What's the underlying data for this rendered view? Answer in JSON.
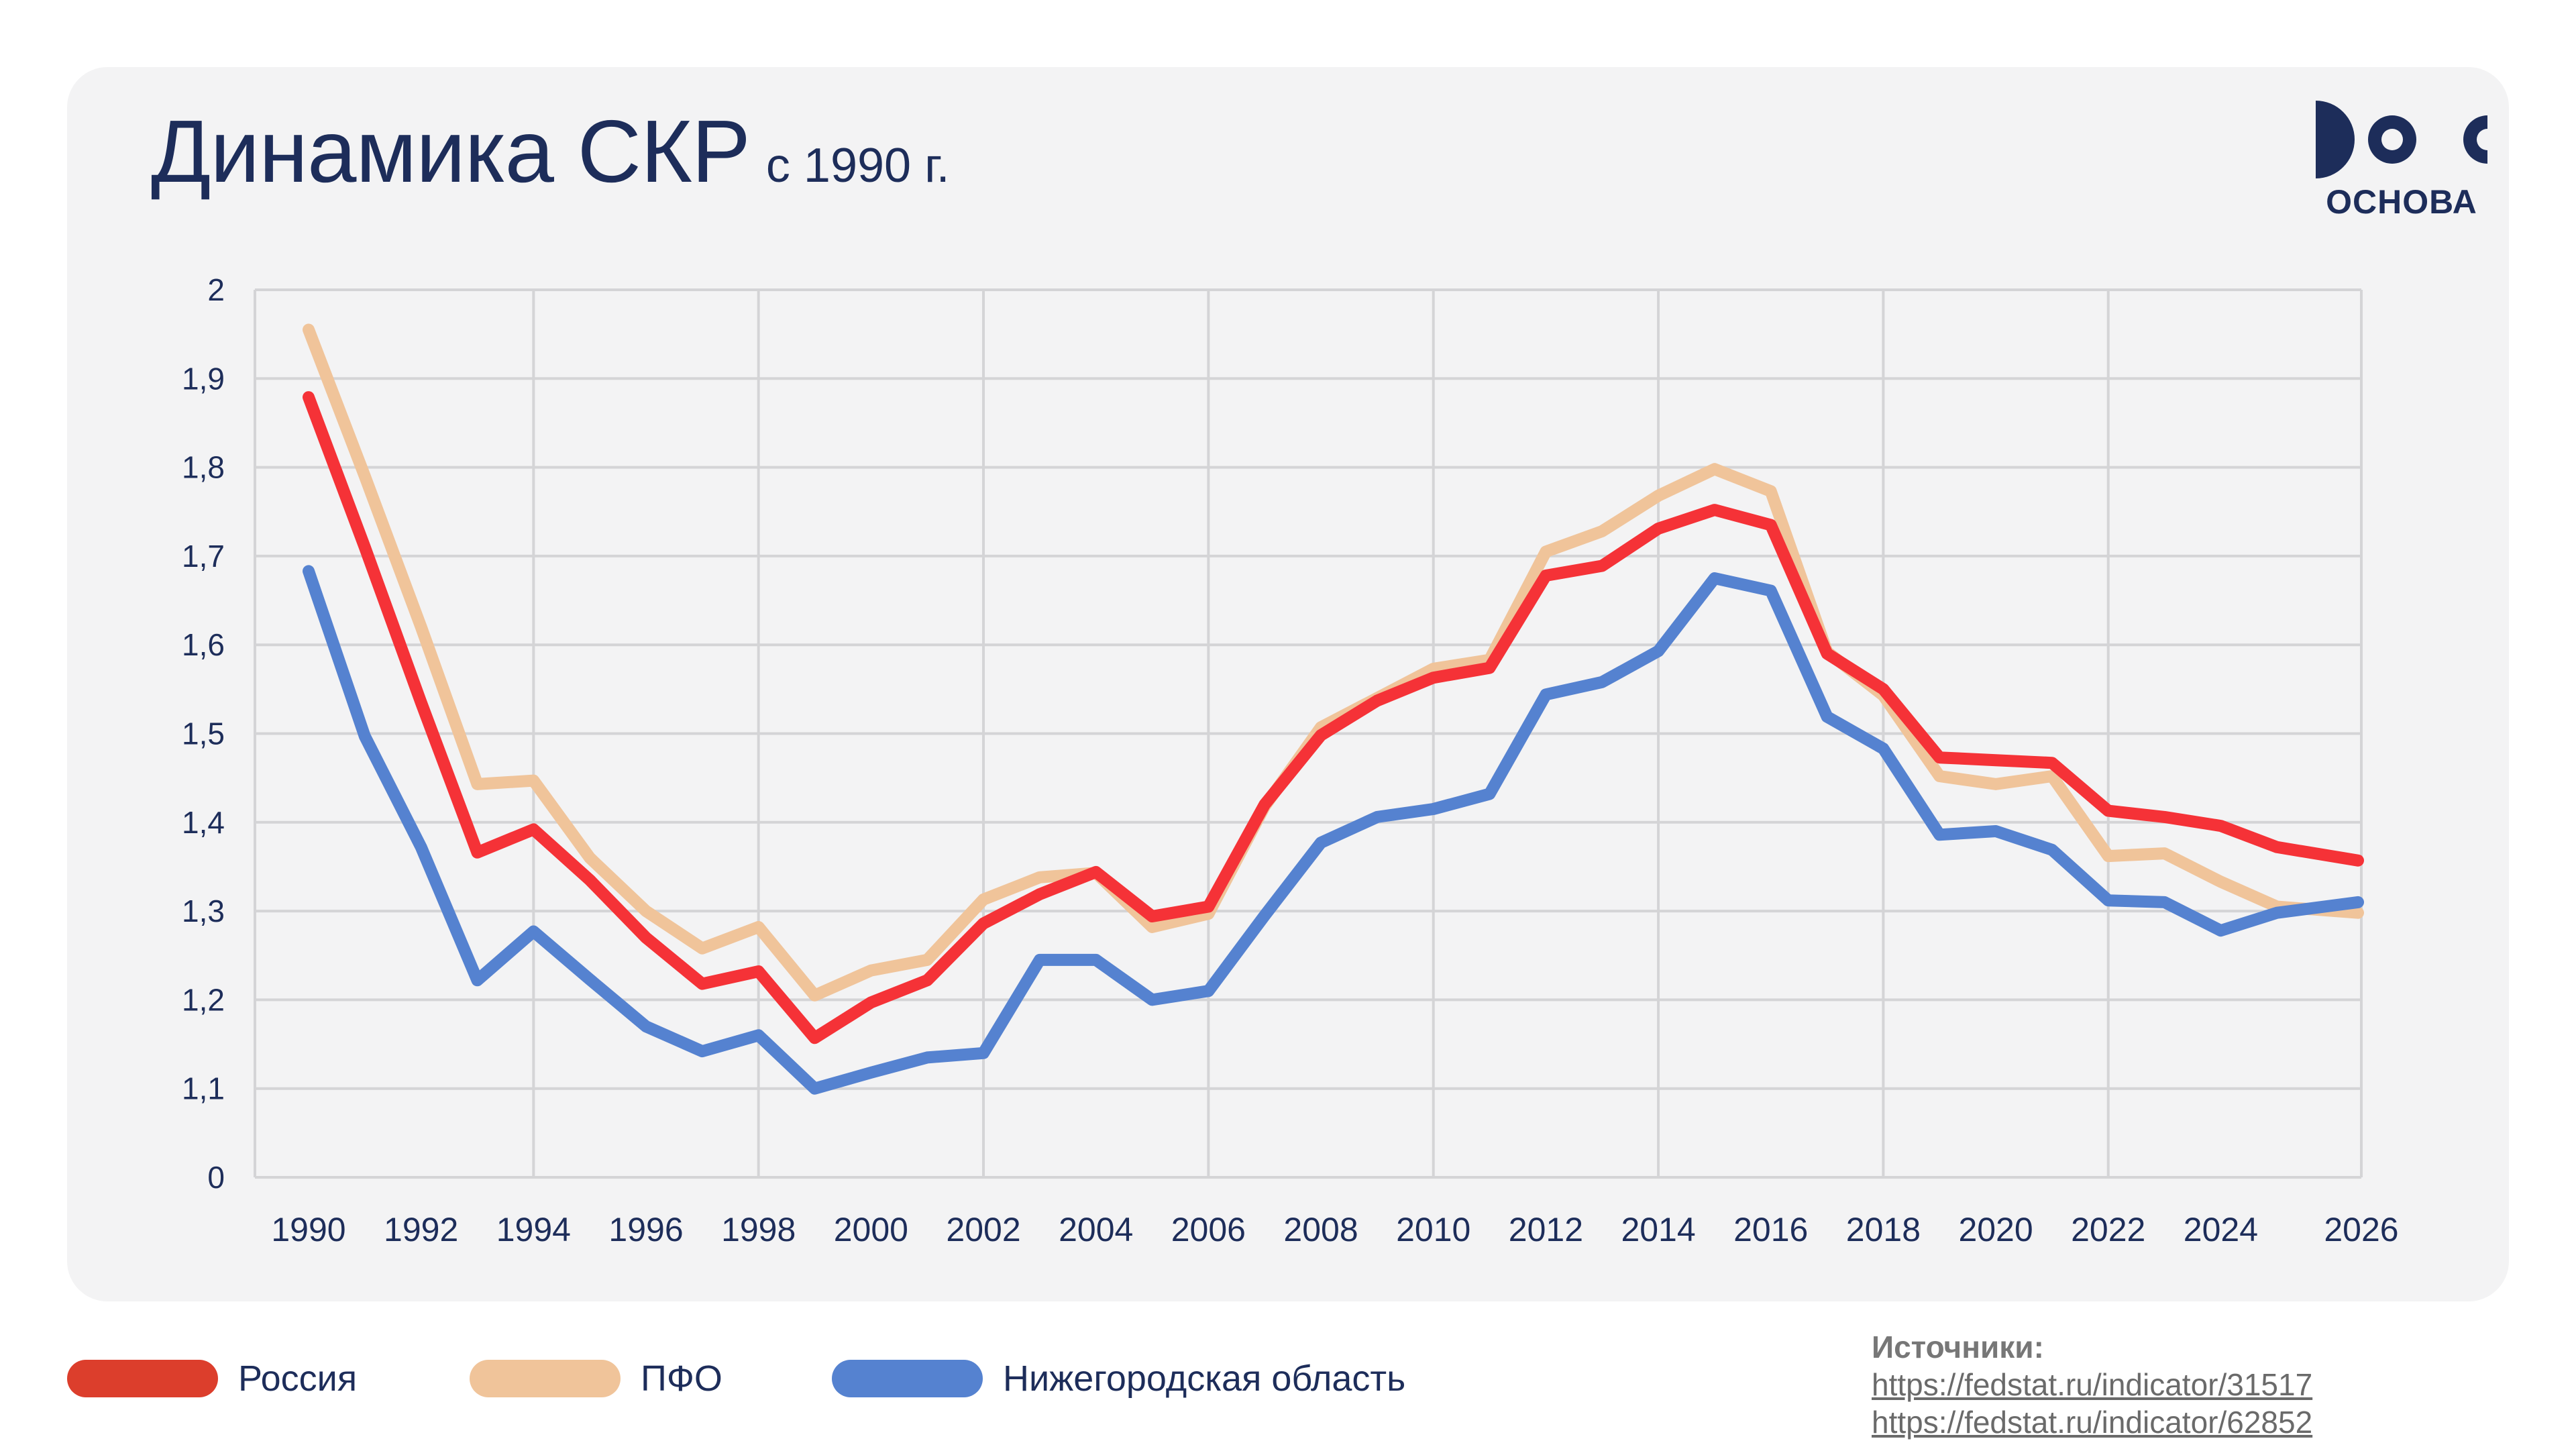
{
  "header": {
    "title": "Динамика СКР",
    "subtitle": "с 1990 г."
  },
  "logo": {
    "text": "ОСНОВА"
  },
  "colors": {
    "russia": "#f53237",
    "pfo": "#f0c49a",
    "nizhny": "#5582d0",
    "text": "#1d2d5a",
    "grid": "#d4d4d6"
  },
  "chart_data": {
    "type": "line",
    "title": "Динамика СКР с 1990 г.",
    "xlabel": "",
    "ylabel": "",
    "ylim": [
      0,
      2
    ],
    "y_ticks": [
      "0",
      "1,1",
      "1,2",
      "1,3",
      "1,4",
      "1,5",
      "1,6",
      "1,7",
      "1,8",
      "1,9",
      "2"
    ],
    "x_ticks": [
      "1990",
      "1992",
      "1994",
      "1996",
      "1998",
      "2000",
      "2002",
      "2004",
      "2006",
      "2008",
      "2010",
      "2012",
      "2014",
      "2016",
      "2018",
      "2020",
      "2022",
      "2024",
      "2026"
    ],
    "x": [
      1990,
      1991,
      1992,
      1993,
      1994,
      1995,
      1996,
      1997,
      1998,
      1999,
      2000,
      2001,
      2002,
      2003,
      2004,
      2005,
      2006,
      2007,
      2008,
      2009,
      2010,
      2011,
      2012,
      2013,
      2014,
      2015,
      2016,
      2017,
      2018,
      2019,
      2020,
      2021,
      2022,
      2023,
      2024,
      2025,
      2026
    ],
    "series": [
      {
        "name": "ПФО",
        "color": "#f0c49a",
        "values": [
          1.955,
          1.79,
          1.62,
          1.443,
          1.447,
          1.36,
          1.3,
          1.258,
          1.282,
          1.205,
          1.233,
          1.245,
          1.313,
          1.338,
          1.343,
          1.282,
          1.297,
          1.418,
          1.507,
          1.54,
          1.573,
          1.583,
          1.705,
          1.728,
          1.768,
          1.798,
          1.773,
          1.592,
          1.543,
          1.452,
          1.443,
          1.452,
          1.362,
          1.365,
          1.333,
          1.305,
          1.298
        ]
      },
      {
        "name": "Нижегородская область",
        "color": "#5582d0",
        "values": [
          1.683,
          1.497,
          1.372,
          1.222,
          1.277,
          1.223,
          1.17,
          1.142,
          1.16,
          1.095,
          1.118,
          1.135,
          1.14,
          1.245,
          1.245,
          1.2,
          1.21,
          1.295,
          1.377,
          1.406,
          1.415,
          1.432,
          1.544,
          1.558,
          1.593,
          1.675,
          1.661,
          1.519,
          1.483,
          1.386,
          1.39,
          1.369,
          1.312,
          1.31,
          1.278,
          1.298,
          1.31
        ]
      },
      {
        "name": "Россия",
        "color": "#f53237",
        "values": [
          1.879,
          1.71,
          1.535,
          1.366,
          1.392,
          1.335,
          1.27,
          1.218,
          1.232,
          1.157,
          1.197,
          1.222,
          1.286,
          1.319,
          1.344,
          1.294,
          1.305,
          1.42,
          1.498,
          1.537,
          1.563,
          1.574,
          1.678,
          1.689,
          1.731,
          1.752,
          1.735,
          1.59,
          1.55,
          1.473,
          1.47,
          1.467,
          1.413,
          1.406,
          1.396,
          1.372,
          1.357
        ]
      }
    ]
  },
  "legend": {
    "items": [
      {
        "label": "Россия",
        "color": "#dc3e2c"
      },
      {
        "label": "ПФО",
        "color": "#f0c49a"
      },
      {
        "label": "Нижегородская область",
        "color": "#5582d0"
      }
    ]
  },
  "sources": {
    "heading": "Источники:",
    "links": [
      "https://fedstat.ru/indicator/31517",
      "https://fedstat.ru/indicator/62852"
    ]
  }
}
